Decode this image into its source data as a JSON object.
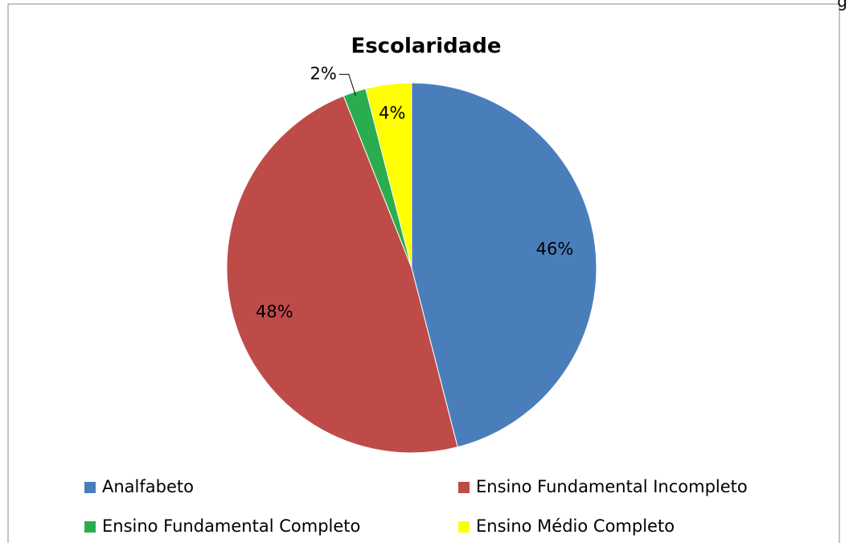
{
  "chart_data": {
    "type": "pie",
    "title": "Escolaridade",
    "categories": [
      "Analfabeto",
      "Ensino Fundamental Incompleto",
      "Ensino Fundamental Completo",
      "Ensino Médio Completo"
    ],
    "values": [
      46,
      48,
      2,
      4
    ],
    "value_labels": [
      "46%",
      "48%",
      "2%",
      "4%"
    ],
    "colors": [
      "#4a7ebb",
      "#be4b48",
      "#2aad4f",
      "#ffff00"
    ],
    "legend": "bottom"
  },
  "corner_text": "g"
}
